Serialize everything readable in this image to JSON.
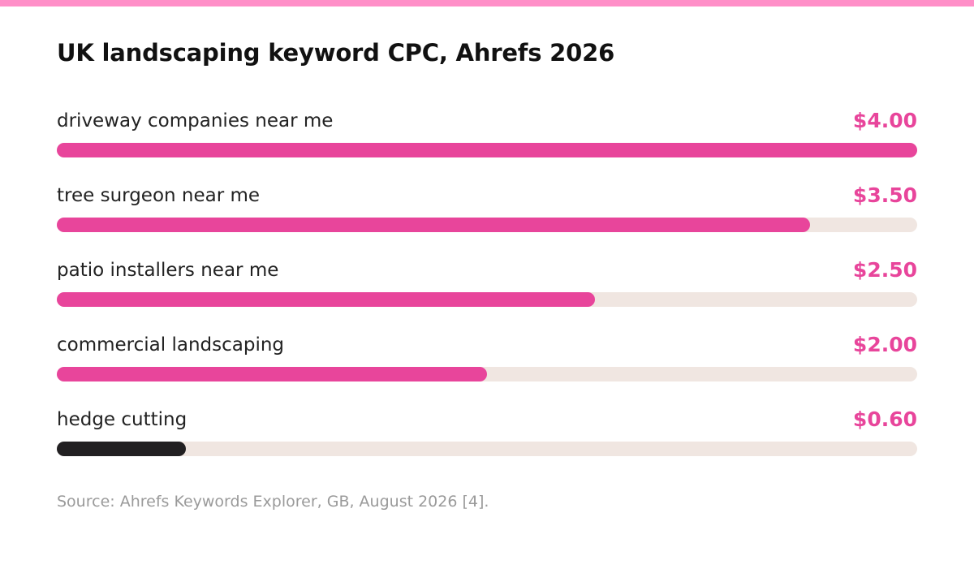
{
  "title": "UK landscaping keyword CPC, Ahrefs 2026",
  "source": "Source: Ahrefs Keywords Explorer, GB, August 2026 [4].",
  "colors": {
    "top_stripe": "#ff8fc8",
    "accent": "#e8459b",
    "highlight_bar": "#222022",
    "track": "#f0e6e1"
  },
  "chart_data": {
    "type": "bar",
    "orientation": "horizontal",
    "title": "UK landscaping keyword CPC, Ahrefs 2026",
    "categories": [
      "driveway companies near me",
      "tree surgeon near me",
      "patio installers near me",
      "commercial landscaping",
      "hedge cutting"
    ],
    "values": [
      4.0,
      3.5,
      2.5,
      2.0,
      0.6
    ],
    "value_labels": [
      "$4.00",
      "$3.50",
      "$2.50",
      "$2.00",
      "$0.60"
    ],
    "xlim": [
      0,
      4
    ],
    "unit": "USD",
    "grid": false,
    "legend": "none",
    "bar_colors": [
      "#e8459b",
      "#e8459b",
      "#e8459b",
      "#e8459b",
      "#222022"
    ]
  }
}
